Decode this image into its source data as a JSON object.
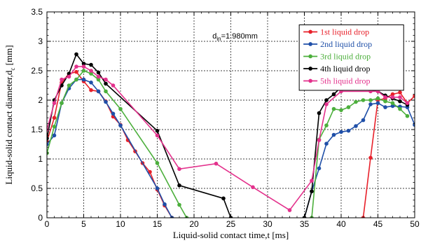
{
  "chart_data": {
    "type": "line",
    "xlabel": "Liquid-solid contact time,t [ms]",
    "ylabel_main": "Liquid-solid contact diameter,d",
    "ylabel_sub": "c",
    "ylabel_unit": " [mm]",
    "annotation_main": "d",
    "annotation_sub": "in",
    "annotation_value": "=1.980mm",
    "xlim": [
      0,
      50
    ],
    "ylim": [
      0,
      3.5
    ],
    "xticks": [
      0,
      5,
      10,
      15,
      20,
      25,
      30,
      35,
      40,
      45,
      50
    ],
    "yticks": [
      0,
      0.5,
      1,
      1.5,
      2,
      2.5,
      3,
      3.5
    ],
    "xtick_labels": [
      "0",
      "5",
      "10",
      "15",
      "20",
      "25",
      "30",
      "35",
      "40",
      "45",
      "50"
    ],
    "ytick_labels": [
      "0",
      "0.5",
      "1",
      "1.5",
      "2",
      "2.5",
      "3",
      "3.5"
    ],
    "grid": true,
    "legend_position": "top-right",
    "series": [
      {
        "name": "1st liquid drop",
        "color": "#e8202a",
        "segments": [
          [
            [
              0,
              1.3
            ],
            [
              1,
              1.7
            ],
            [
              2,
              2.3
            ],
            [
              3,
              2.45
            ],
            [
              4,
              2.48
            ],
            [
              5,
              2.32
            ],
            [
              6,
              2.17
            ],
            [
              7,
              2.15
            ],
            [
              8,
              1.98
            ],
            [
              9,
              1.72
            ],
            [
              10,
              1.58
            ],
            [
              11,
              1.32
            ],
            [
              12,
              1.13
            ],
            [
              13,
              0.93
            ],
            [
              14,
              0.78
            ],
            [
              15,
              0.48
            ],
            [
              16,
              0.21
            ],
            [
              17,
              0.0
            ]
          ],
          [
            [
              43,
              0.0
            ],
            [
              44,
              1.02
            ],
            [
              45,
              2.0
            ],
            [
              46,
              2.03
            ],
            [
              47,
              2.1
            ],
            [
              48,
              2.13
            ],
            [
              49,
              1.95
            ],
            [
              50,
              2.07
            ]
          ]
        ]
      },
      {
        "name": "2nd liquid drop",
        "color": "#1f4fa8",
        "segments": [
          [
            [
              0,
              1.25
            ],
            [
              1,
              1.4
            ],
            [
              2,
              1.95
            ],
            [
              3,
              2.2
            ],
            [
              4,
              2.35
            ],
            [
              5,
              2.35
            ],
            [
              6,
              2.3
            ],
            [
              7,
              2.15
            ],
            [
              8,
              1.97
            ],
            [
              9,
              1.77
            ],
            [
              10,
              1.57
            ],
            [
              15,
              0.5
            ],
            [
              16,
              0.23
            ],
            [
              17,
              0.0
            ]
          ],
          [
            [
              35,
              0.0
            ],
            [
              36,
              0.45
            ],
            [
              37,
              0.84
            ],
            [
              38,
              1.26
            ],
            [
              39,
              1.41
            ],
            [
              40,
              1.46
            ],
            [
              41,
              1.48
            ],
            [
              42,
              1.56
            ],
            [
              43,
              1.66
            ],
            [
              44,
              1.93
            ],
            [
              45,
              1.95
            ],
            [
              46,
              1.88
            ],
            [
              47,
              1.9
            ],
            [
              48,
              1.89
            ],
            [
              49,
              1.88
            ],
            [
              50,
              1.58
            ],
            [
              51,
              1.38
            ]
          ]
        ]
      },
      {
        "name": "3rd liquid drop",
        "color": "#4caf3c",
        "segments": [
          [
            [
              0,
              1.1
            ],
            [
              1,
              1.55
            ],
            [
              2,
              1.95
            ],
            [
              3,
              2.25
            ],
            [
              4,
              2.35
            ],
            [
              5,
              2.5
            ],
            [
              6,
              2.45
            ],
            [
              7,
              2.35
            ],
            [
              8,
              2.15
            ],
            [
              10,
              1.85
            ],
            [
              15,
              0.93
            ],
            [
              18,
              0.22
            ],
            [
              19,
              0.0
            ]
          ],
          [
            [
              36,
              0.0
            ],
            [
              37,
              1.33
            ],
            [
              38,
              1.57
            ],
            [
              39,
              1.85
            ],
            [
              40,
              1.83
            ],
            [
              41,
              1.88
            ],
            [
              42,
              1.97
            ],
            [
              43,
              2.0
            ],
            [
              44,
              2.0
            ],
            [
              45,
              2.03
            ],
            [
              46,
              1.98
            ],
            [
              47,
              1.95
            ],
            [
              48,
              1.85
            ],
            [
              49,
              1.73
            ]
          ]
        ]
      },
      {
        "name": "4th liquid drop",
        "color": "#000000",
        "segments": [
          [
            [
              0,
              1.35
            ],
            [
              1,
              2.0
            ],
            [
              2,
              2.25
            ],
            [
              3,
              2.45
            ],
            [
              4,
              2.78
            ],
            [
              5,
              2.62
            ],
            [
              6,
              2.6
            ],
            [
              7,
              2.47
            ],
            [
              8,
              2.28
            ],
            [
              15,
              1.48
            ],
            [
              18,
              0.55
            ],
            [
              24,
              0.33
            ],
            [
              25,
              0.0
            ]
          ],
          [
            [
              35,
              0.0
            ],
            [
              36,
              0.45
            ],
            [
              37,
              1.78
            ],
            [
              38,
              2.0
            ],
            [
              39,
              2.1
            ],
            [
              40,
              2.22
            ],
            [
              41,
              2.25
            ],
            [
              42,
              2.25
            ],
            [
              43,
              2.2
            ],
            [
              44,
              2.17
            ],
            [
              45,
              2.15
            ],
            [
              46,
              2.08
            ],
            [
              47,
              2.03
            ],
            [
              48,
              1.98
            ],
            [
              49,
              1.92
            ]
          ]
        ]
      },
      {
        "name": "5th liquid drop",
        "color": "#e3318c",
        "segments": [
          [
            [
              0,
              1.5
            ],
            [
              1,
              1.95
            ],
            [
              2,
              2.35
            ],
            [
              3,
              2.4
            ],
            [
              4,
              2.57
            ],
            [
              5,
              2.57
            ],
            [
              6,
              2.5
            ],
            [
              7,
              2.4
            ],
            [
              8,
              2.35
            ],
            [
              9,
              2.25
            ],
            [
              15,
              1.4
            ],
            [
              18,
              0.83
            ],
            [
              23,
              0.92
            ],
            [
              28,
              0.52
            ],
            [
              33,
              0.13
            ],
            [
              36,
              0.63
            ],
            [
              37,
              1.32
            ],
            [
              38,
              1.93
            ],
            [
              40,
              2.15
            ],
            [
              44,
              2.15
            ],
            [
              45,
              2.15
            ],
            [
              46,
              2.05
            ],
            [
              47,
              2.05
            ],
            [
              48,
              2.05
            ],
            [
              49,
              1.95
            ]
          ]
        ]
      }
    ]
  }
}
